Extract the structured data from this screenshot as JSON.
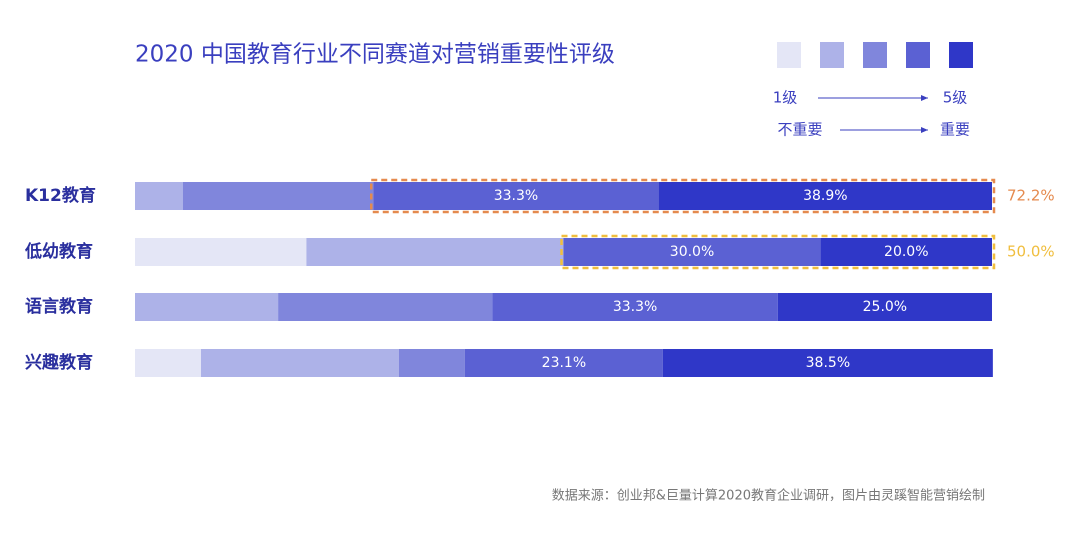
{
  "chart_data": {
    "type": "stacked-bar-horizontal",
    "title": "2020 中国教育行业不同赛道对营销重要性评级",
    "categories": [
      "K12教育",
      "低幼教育",
      "语言教育",
      "兴趣教育"
    ],
    "series": [
      {
        "color": "#e4e6f6",
        "values": [
          0,
          20.0,
          0,
          7.7
        ],
        "value_labels": [
          null,
          null,
          null,
          null
        ]
      },
      {
        "color": "#adb2e8",
        "values": [
          5.6,
          30.0,
          16.7,
          23.1
        ],
        "value_labels": [
          null,
          null,
          null,
          null
        ]
      },
      {
        "color": "#8086dc",
        "values": [
          22.2,
          0,
          25.0,
          7.7
        ],
        "value_labels": [
          null,
          null,
          null,
          null
        ]
      },
      {
        "color": "#5b61d3",
        "values": [
          33.3,
          30.0,
          33.3,
          23.1
        ],
        "value_labels": [
          "33.3%",
          "30.0%",
          "33.3%",
          "23.1%"
        ]
      },
      {
        "color": "#2f37c8",
        "values": [
          38.9,
          20.0,
          25.0,
          38.5
        ],
        "value_labels": [
          "38.9%",
          "20.0%",
          "25.0%",
          "38.5%"
        ]
      }
    ],
    "highlights": [
      {
        "value": 72.2,
        "label": "72.2%",
        "color": "#e58a4e"
      },
      {
        "value": 50.0,
        "label": "50.0%",
        "color": "#f0be3e"
      },
      null,
      null
    ],
    "legend_scale": {
      "low": "1级",
      "high": "5级",
      "low_desc": "不重要",
      "high_desc": "重要"
    },
    "xlim": [
      0,
      100
    ],
    "source": "数据来源：创业邦&巨量计算2020教育企业调研，图片由灵蹊智能营销绘制"
  }
}
